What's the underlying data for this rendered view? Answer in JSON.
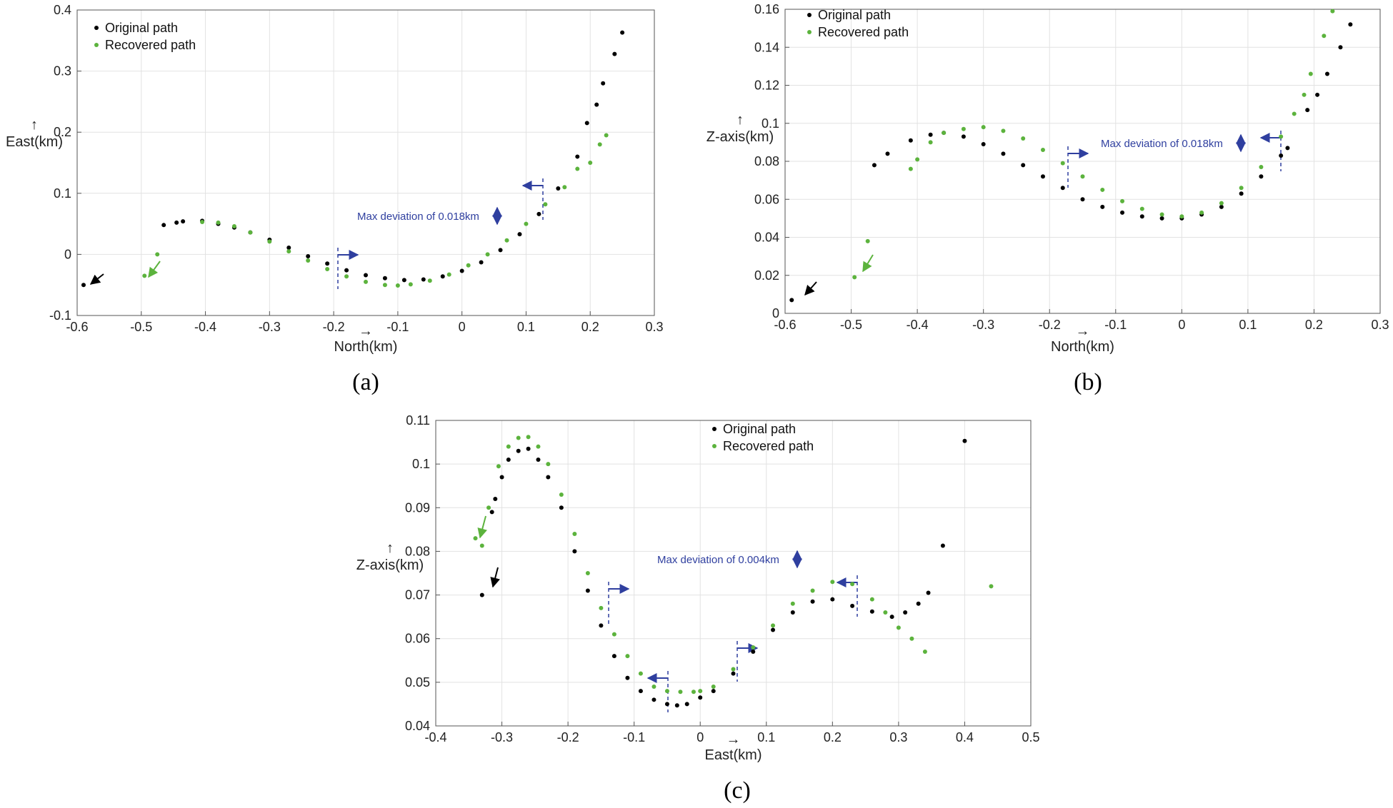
{
  "figure": {
    "captions": [
      "(a)",
      "(b)",
      "(c)"
    ]
  },
  "chart_data": [
    {
      "type": "scatter",
      "caption": "(a)",
      "xlabel": "North(km)",
      "ylabel": "East(km)",
      "xlim": [
        -0.6,
        0.3
      ],
      "ylim": [
        -0.1,
        0.4
      ],
      "xticks": [
        -0.6,
        -0.5,
        -0.4,
        -0.3,
        -0.2,
        -0.1,
        0,
        0.1,
        0.2,
        0.3
      ],
      "xtick_labels": [
        "-0.6",
        "-0.5",
        "-0.4",
        "-0.3",
        "-0.2",
        "-0.1",
        "0",
        "0.1",
        "0.2",
        "0.3"
      ],
      "yticks": [
        -0.1,
        0,
        0.1,
        0.2,
        0.3,
        0.4
      ],
      "ytick_labels": [
        "-0.1",
        "0",
        "0.1",
        "0.2",
        "0.3",
        "0.4"
      ],
      "grid": true,
      "legend_position": "top-left",
      "annotation": "Max deviation of 0.018km",
      "series": [
        {
          "name": "Original path",
          "color": "#000000",
          "x": [
            -0.59,
            -0.465,
            -0.445,
            -0.435,
            -0.405,
            -0.38,
            -0.355,
            -0.33,
            -0.3,
            -0.27,
            -0.24,
            -0.21,
            -0.18,
            -0.15,
            -0.12,
            -0.09,
            -0.06,
            -0.03,
            0.0,
            0.03,
            0.06,
            0.09,
            0.12,
            0.15,
            0.18,
            0.195,
            0.21,
            0.22,
            0.238,
            0.25
          ],
          "y": [
            -0.05,
            0.048,
            0.052,
            0.054,
            0.055,
            0.05,
            0.044,
            0.036,
            0.024,
            0.011,
            -0.003,
            -0.015,
            -0.026,
            -0.034,
            -0.039,
            -0.042,
            -0.041,
            -0.036,
            -0.027,
            -0.013,
            0.007,
            0.033,
            0.066,
            0.108,
            0.16,
            0.215,
            0.245,
            0.28,
            0.328,
            0.363
          ]
        },
        {
          "name": "Recovered path",
          "color": "#5cb33d",
          "x": [
            -0.495,
            -0.475,
            -0.405,
            -0.38,
            -0.355,
            -0.33,
            -0.3,
            -0.27,
            -0.24,
            -0.21,
            -0.18,
            -0.15,
            -0.12,
            -0.1,
            -0.08,
            -0.05,
            -0.02,
            0.01,
            0.04,
            0.07,
            0.1,
            0.13,
            0.16,
            0.18,
            0.2,
            0.215,
            0.225
          ],
          "y": [
            -0.035,
            0.0,
            0.053,
            0.052,
            0.046,
            0.036,
            0.021,
            0.005,
            -0.01,
            -0.024,
            -0.036,
            -0.045,
            -0.05,
            -0.051,
            -0.049,
            -0.043,
            -0.033,
            -0.018,
            0.0,
            0.023,
            0.05,
            0.082,
            0.11,
            0.14,
            0.15,
            0.18,
            0.195
          ]
        }
      ]
    },
    {
      "type": "scatter",
      "caption": "(b)",
      "xlabel": "North(km)",
      "ylabel": "Z-axis(km)",
      "xlim": [
        -0.6,
        0.3
      ],
      "ylim": [
        0,
        0.16
      ],
      "xticks": [
        -0.6,
        -0.5,
        -0.4,
        -0.3,
        -0.2,
        -0.1,
        0,
        0.1,
        0.2,
        0.3
      ],
      "xtick_labels": [
        "-0.6",
        "-0.5",
        "-0.4",
        "-0.3",
        "-0.2",
        "-0.1",
        "0",
        "0.1",
        "0.2",
        "0.3"
      ],
      "yticks": [
        0,
        0.02,
        0.04,
        0.06,
        0.08,
        0.1,
        0.12,
        0.14,
        0.16
      ],
      "ytick_labels": [
        "0",
        "0.02",
        "0.04",
        "0.06",
        "0.08",
        "0.1",
        "0.12",
        "0.14",
        "0.16"
      ],
      "grid": true,
      "legend_position": "top-left",
      "annotation": "Max deviation of 0.018km",
      "series": [
        {
          "name": "Original path",
          "color": "#000000",
          "x": [
            -0.59,
            -0.465,
            -0.445,
            -0.41,
            -0.38,
            -0.36,
            -0.33,
            -0.3,
            -0.27,
            -0.24,
            -0.21,
            -0.18,
            -0.15,
            -0.12,
            -0.09,
            -0.06,
            -0.03,
            0.0,
            0.03,
            0.06,
            0.09,
            0.12,
            0.15,
            0.16,
            0.19,
            0.205,
            0.22,
            0.24,
            0.255
          ],
          "y": [
            0.007,
            0.078,
            0.084,
            0.091,
            0.094,
            0.095,
            0.093,
            0.089,
            0.084,
            0.078,
            0.072,
            0.066,
            0.06,
            0.056,
            0.053,
            0.051,
            0.05,
            0.05,
            0.052,
            0.056,
            0.063,
            0.072,
            0.083,
            0.087,
            0.107,
            0.115,
            0.126,
            0.14,
            0.152
          ]
        },
        {
          "name": "Recovered path",
          "color": "#5cb33d",
          "x": [
            -0.495,
            -0.475,
            -0.41,
            -0.4,
            -0.38,
            -0.36,
            -0.33,
            -0.3,
            -0.27,
            -0.24,
            -0.21,
            -0.18,
            -0.15,
            -0.12,
            -0.09,
            -0.06,
            -0.03,
            0.0,
            0.03,
            0.06,
            0.09,
            0.12,
            0.15,
            0.17,
            0.185,
            0.195,
            0.215,
            0.228
          ],
          "y": [
            0.019,
            0.038,
            0.076,
            0.081,
            0.09,
            0.095,
            0.097,
            0.098,
            0.096,
            0.092,
            0.086,
            0.079,
            0.072,
            0.065,
            0.059,
            0.055,
            0.052,
            0.051,
            0.053,
            0.058,
            0.066,
            0.077,
            0.093,
            0.105,
            0.115,
            0.126,
            0.146,
            0.159
          ]
        }
      ]
    },
    {
      "type": "scatter",
      "caption": "(c)",
      "xlabel": "East(km)",
      "ylabel": "Z-axis(km)",
      "xlim": [
        -0.4,
        0.5
      ],
      "ylim": [
        0.04,
        0.11
      ],
      "xticks": [
        -0.4,
        -0.3,
        -0.2,
        -0.1,
        0,
        0.1,
        0.2,
        0.3,
        0.4,
        0.5
      ],
      "xtick_labels": [
        "-0.4",
        "-0.3",
        "-0.2",
        "-0.1",
        "0",
        "0.1",
        "0.2",
        "0.3",
        "0.4",
        "0.5"
      ],
      "yticks": [
        0.04,
        0.05,
        0.06,
        0.07,
        0.08,
        0.09,
        0.1,
        0.11
      ],
      "ytick_labels": [
        "0.04",
        "0.05",
        "0.06",
        "0.07",
        "0.08",
        "0.09",
        "0.1",
        "0.11"
      ],
      "grid": true,
      "legend_position": "top-center",
      "annotation": "Max deviation of 0.004km",
      "series": [
        {
          "name": "Original path",
          "color": "#000000",
          "x": [
            -0.33,
            -0.315,
            -0.31,
            -0.3,
            -0.29,
            -0.275,
            -0.26,
            -0.245,
            -0.23,
            -0.21,
            -0.19,
            -0.17,
            -0.15,
            -0.13,
            -0.11,
            -0.09,
            -0.07,
            -0.05,
            -0.035,
            -0.02,
            0.0,
            0.02,
            0.05,
            0.08,
            0.11,
            0.14,
            0.17,
            0.2,
            0.23,
            0.26,
            0.29,
            0.31,
            0.33,
            0.345,
            0.367,
            0.4
          ],
          "y": [
            0.07,
            0.089,
            0.092,
            0.097,
            0.101,
            0.103,
            0.1035,
            0.101,
            0.097,
            0.09,
            0.08,
            0.071,
            0.063,
            0.056,
            0.051,
            0.048,
            0.046,
            0.045,
            0.0447,
            0.045,
            0.0465,
            0.048,
            0.052,
            0.057,
            0.062,
            0.066,
            0.0685,
            0.069,
            0.0675,
            0.0662,
            0.065,
            0.066,
            0.068,
            0.0705,
            0.0813,
            0.1053
          ]
        },
        {
          "name": "Recovered path",
          "color": "#5cb33d",
          "x": [
            -0.34,
            -0.33,
            -0.32,
            -0.305,
            -0.29,
            -0.275,
            -0.26,
            -0.245,
            -0.23,
            -0.21,
            -0.19,
            -0.17,
            -0.15,
            -0.13,
            -0.11,
            -0.09,
            -0.07,
            -0.05,
            -0.03,
            -0.01,
            0.0,
            0.02,
            0.05,
            0.08,
            0.11,
            0.14,
            0.17,
            0.2,
            0.23,
            0.26,
            0.28,
            0.3,
            0.32,
            0.34,
            0.44
          ],
          "y": [
            0.083,
            0.0813,
            0.09,
            0.0995,
            0.104,
            0.106,
            0.1062,
            0.104,
            0.1,
            0.093,
            0.084,
            0.075,
            0.067,
            0.061,
            0.056,
            0.052,
            0.049,
            0.048,
            0.0478,
            0.0478,
            0.048,
            0.049,
            0.053,
            0.058,
            0.063,
            0.068,
            0.071,
            0.073,
            0.0725,
            0.069,
            0.066,
            0.0625,
            0.06,
            0.057,
            0.072
          ]
        }
      ]
    }
  ]
}
